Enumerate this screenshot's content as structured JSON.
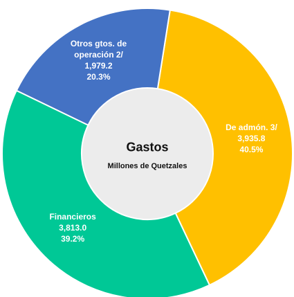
{
  "chart_data": {
    "type": "donut",
    "title": "Gastos",
    "subtitle": "Millones de Quetzales",
    "categories": [
      "De admón. 3/",
      "Financieros",
      "Otros gtos. de operación  2/"
    ],
    "values": [
      3935.8,
      3813.0,
      1979.2
    ],
    "value_labels": [
      "3,935.8",
      "3,813.0",
      "1,979.2"
    ],
    "percentages": [
      40.5,
      39.2,
      20.3
    ],
    "percentage_labels": [
      "40.5%",
      "39.2%",
      "20.3%"
    ],
    "colors": [
      "#FFC000",
      "#00C896",
      "#4472C4"
    ]
  }
}
